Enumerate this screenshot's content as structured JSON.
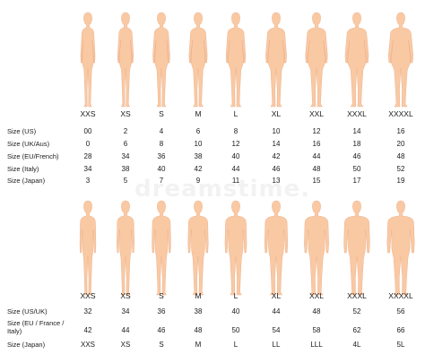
{
  "watermark": "dreamstime.",
  "colors": {
    "skin": "#f9c9a3",
    "skin_outline": "#e9a985",
    "text": "#1a1a1a"
  },
  "women": {
    "headers": [
      "XXS",
      "XS",
      "S",
      "M",
      "L",
      "XL",
      "XXL",
      "XXXL",
      "XXXXL"
    ],
    "rows": [
      {
        "label": "Size (US)",
        "values": [
          "00",
          "2",
          "4",
          "6",
          "8",
          "10",
          "12",
          "14",
          "16"
        ]
      },
      {
        "label": "Size (UK/Aus)",
        "values": [
          "0",
          "6",
          "8",
          "10",
          "12",
          "14",
          "16",
          "18",
          "20"
        ]
      },
      {
        "label": "Size (EU/French)",
        "values": [
          "28",
          "34",
          "36",
          "38",
          "40",
          "42",
          "44",
          "46",
          "48"
        ]
      },
      {
        "label": "Size (Italy)",
        "values": [
          "34",
          "38",
          "40",
          "42",
          "44",
          "46",
          "48",
          "50",
          "52"
        ]
      },
      {
        "label": "Size (Japan)",
        "values": [
          "3",
          "5",
          "7",
          "9",
          "11",
          "13",
          "15",
          "17",
          "19"
        ]
      }
    ]
  },
  "men": {
    "headers": [
      "XXS",
      "XS",
      "S",
      "M",
      "L",
      "XL",
      "XXL",
      "XXXL",
      "XXXXL"
    ],
    "rows": [
      {
        "label": "Size (US/UK)",
        "values": [
          "32",
          "34",
          "36",
          "38",
          "40",
          "44",
          "48",
          "52",
          "56"
        ]
      },
      {
        "label": "Size (EU / France / Italy)",
        "values": [
          "42",
          "44",
          "46",
          "48",
          "50",
          "54",
          "58",
          "62",
          "66"
        ]
      },
      {
        "label": "Size (Japan)",
        "values": [
          "XXS",
          "XS",
          "S",
          "M",
          "L",
          "LL",
          "LLL",
          "4L",
          "5L"
        ]
      }
    ]
  }
}
